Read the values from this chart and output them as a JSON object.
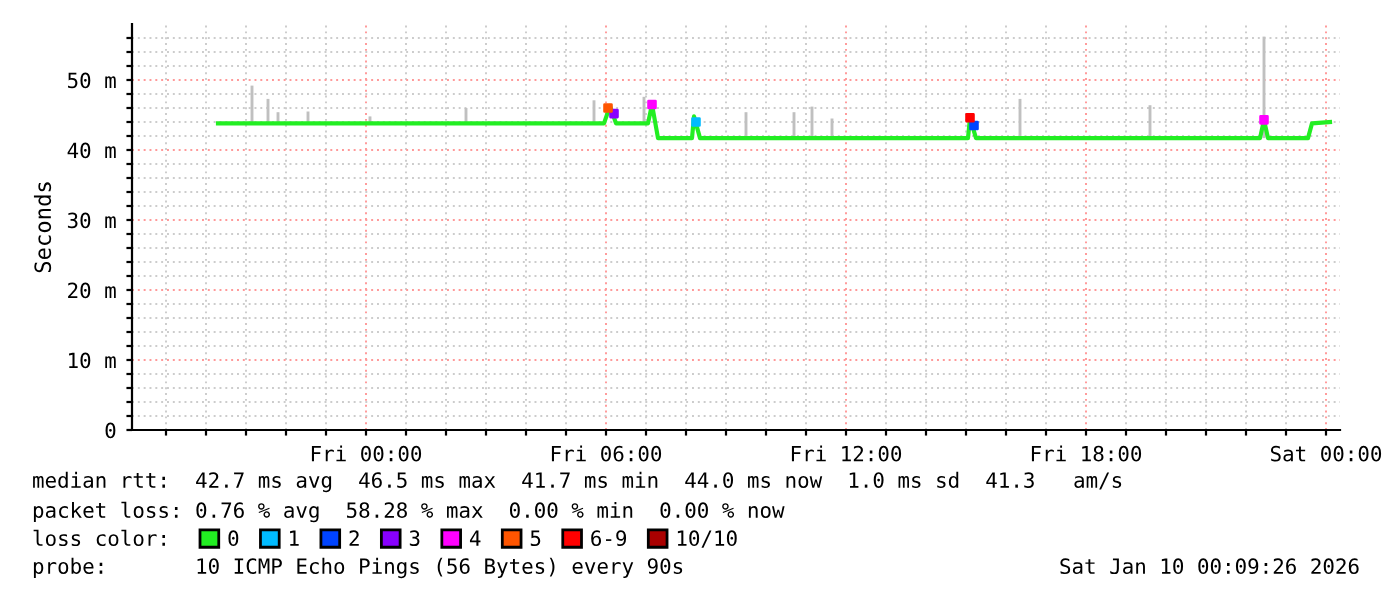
{
  "chart_data": {
    "type": "line",
    "ylabel": "Seconds",
    "xlim": [
      "2026-01-08T18:09",
      "2026-01-10T00:21"
    ],
    "xticks": [
      {
        "value": "2026-01-08T19:00",
        "label": null
      },
      {
        "value": "2026-01-08T20:00",
        "label": null
      },
      {
        "value": "2026-01-08T21:00",
        "label": null
      },
      {
        "value": "2026-01-08T22:00",
        "label": null
      },
      {
        "value": "2026-01-08T23:00",
        "label": null
      },
      {
        "value": "2026-01-09T00:00",
        "label": "Fri 00:00"
      },
      {
        "value": "2026-01-09T01:00",
        "label": null
      },
      {
        "value": "2026-01-09T02:00",
        "label": null
      },
      {
        "value": "2026-01-09T03:00",
        "label": null
      },
      {
        "value": "2026-01-09T04:00",
        "label": null
      },
      {
        "value": "2026-01-09T05:00",
        "label": null
      },
      {
        "value": "2026-01-09T06:00",
        "label": "Fri 06:00"
      },
      {
        "value": "2026-01-09T07:00",
        "label": null
      },
      {
        "value": "2026-01-09T08:00",
        "label": null
      },
      {
        "value": "2026-01-09T09:00",
        "label": null
      },
      {
        "value": "2026-01-09T10:00",
        "label": null
      },
      {
        "value": "2026-01-09T11:00",
        "label": null
      },
      {
        "value": "2026-01-09T12:00",
        "label": "Fri 12:00"
      },
      {
        "value": "2026-01-09T13:00",
        "label": null
      },
      {
        "value": "2026-01-09T14:00",
        "label": null
      },
      {
        "value": "2026-01-09T15:00",
        "label": null
      },
      {
        "value": "2026-01-09T16:00",
        "label": null
      },
      {
        "value": "2026-01-09T17:00",
        "label": null
      },
      {
        "value": "2026-01-09T18:00",
        "label": "Fri 18:00"
      },
      {
        "value": "2026-01-09T19:00",
        "label": null
      },
      {
        "value": "2026-01-09T20:00",
        "label": null
      },
      {
        "value": "2026-01-09T21:00",
        "label": null
      },
      {
        "value": "2026-01-09T22:00",
        "label": null
      },
      {
        "value": "2026-01-09T23:00",
        "label": null
      },
      {
        "value": "2026-01-10T00:00",
        "label": "Sat 00:00"
      }
    ],
    "ylim": [
      0,
      58
    ],
    "yticks": [
      0,
      {
        "value": 2,
        "label": null
      },
      {
        "value": 4,
        "label": null
      },
      {
        "value": 6,
        "label": null
      },
      {
        "value": 8,
        "label": null
      },
      {
        "value": 10,
        "label": "10 m"
      },
      {
        "value": 12,
        "label": null
      },
      {
        "value": 14,
        "label": null
      },
      {
        "value": 16,
        "label": null
      },
      {
        "value": 18,
        "label": null
      },
      {
        "value": 20,
        "label": "20 m"
      },
      {
        "value": 22,
        "label": null
      },
      {
        "value": 24,
        "label": null
      },
      {
        "value": 26,
        "label": null
      },
      {
        "value": 28,
        "label": null
      },
      {
        "value": 30,
        "label": "30 m"
      },
      {
        "value": 32,
        "label": null
      },
      {
        "value": 34,
        "label": null
      },
      {
        "value": 36,
        "label": null
      },
      {
        "value": 38,
        "label": null
      },
      {
        "value": 40,
        "label": "40 m"
      },
      {
        "value": 42,
        "label": null
      },
      {
        "value": 44,
        "label": null
      },
      {
        "value": 46,
        "label": null
      },
      {
        "value": 48,
        "label": null
      },
      {
        "value": 50,
        "label": "50 m"
      },
      {
        "value": 52,
        "label": null
      },
      {
        "value": 54,
        "label": null
      },
      {
        "value": 56,
        "label": null
      }
    ],
    "grid": true,
    "legend": "bottom",
    "series": [
      {
        "type": "bar",
        "color": "#c0c0c0",
        "x": [
          "2026-01-08T21:09",
          "2026-01-08T21:33",
          "2026-01-08T21:48",
          "2026-01-08T22:33",
          "2026-01-09T00:06",
          "2026-01-09T02:30",
          "2026-01-09T05:42",
          "2026-01-09T06:57",
          "2026-01-09T09:30",
          "2026-01-09T10:42",
          "2026-01-09T11:09",
          "2026-01-09T11:39",
          "2026-01-09T16:21",
          "2026-01-09T19:36",
          "2026-01-09T22:27"
        ],
        "base": [
          43.8,
          43.8,
          43.8,
          43.8,
          43.8,
          43.8,
          43.8,
          43.8,
          41.7,
          41.7,
          41.7,
          41.7,
          41.7,
          41.7,
          41.7
        ],
        "values": [
          5.4,
          3.5,
          1.6,
          1.7,
          1.0,
          2.2,
          3.3,
          3.8,
          3.7,
          3.7,
          4.5,
          2.8,
          5.6,
          4.7,
          14.5
        ]
      },
      {
        "name": "0",
        "color": "#22ee22",
        "x": [
          "2026-01-08T20:18",
          "2026-01-09T05:57",
          "2026-01-09T06:06",
          "2026-01-09T06:15",
          "2026-01-09T07:03",
          "2026-01-09T07:09",
          "2026-01-09T07:18",
          "2026-01-09T08:09",
          "2026-01-09T08:12",
          "2026-01-09T08:21",
          "2026-01-09T15:03",
          "2026-01-09T15:06",
          "2026-01-09T15:15",
          "2026-01-09T22:21",
          "2026-01-09T22:27",
          "2026-01-09T22:33",
          "2026-01-09T23:33",
          "2026-01-09T23:39",
          "2026-01-10T00:06"
        ],
        "values": [
          43.8,
          43.8,
          46.3,
          43.8,
          43.8,
          46.5,
          41.7,
          41.7,
          44.8,
          41.7,
          41.7,
          44.6,
          41.7,
          41.7,
          44.3,
          41.7,
          41.7,
          43.8,
          44.0
        ]
      },
      {
        "type": "scatter",
        "name": "1",
        "color": "#00bbff",
        "x": [
          "2026-01-09T08:15"
        ],
        "values": [
          44.0
        ]
      },
      {
        "type": "scatter",
        "name": "2",
        "color": "#0044ff",
        "x": [
          "2026-01-09T15:12"
        ],
        "values": [
          43.5
        ]
      },
      {
        "type": "scatter",
        "name": "3",
        "color": "#8800ff",
        "x": [
          "2026-01-09T06:12"
        ],
        "values": [
          45.2
        ]
      },
      {
        "type": "scatter",
        "name": "4",
        "color": "#ff00ff",
        "x": [
          "2026-01-09T07:09",
          "2026-01-09T22:27"
        ],
        "values": [
          46.5,
          44.3
        ]
      },
      {
        "type": "scatter",
        "name": "5",
        "color": "#ff5500",
        "x": [
          "2026-01-09T06:03"
        ],
        "values": [
          46.0
        ]
      },
      {
        "type": "scatter",
        "name": "6-9",
        "color": "#ff0000",
        "x": [
          "2026-01-09T15:06"
        ],
        "values": [
          44.6
        ]
      },
      {
        "type": "scatter",
        "name": "10/10",
        "color": "#aa0000"
      }
    ],
    "annotations": [
      "median rtt:  42.7 ms avg  46.5 ms max  41.7 ms min  44.0 ms now  1.0 ms sd  41.3   am/s",
      "packet loss: 0.76 % avg  58.28 % max  0.00 % min  0.00 % now",
      "loss color:",
      "probe:       10 ICMP Echo Pings (56 Bytes) every 90s",
      "Sat Jan 10 00:09:26 2026"
    ]
  }
}
